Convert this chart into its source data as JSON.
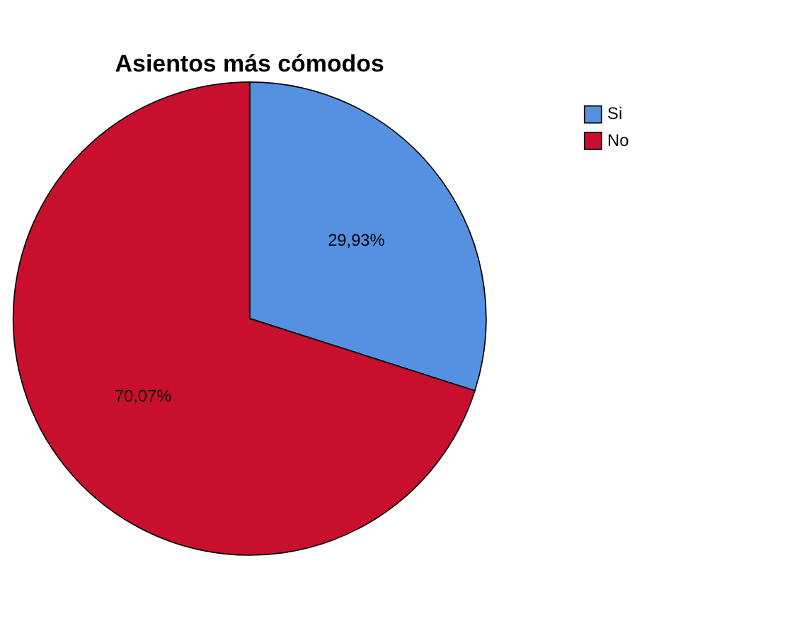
{
  "chart_data": {
    "type": "pie",
    "title": "Asientos más cómodos",
    "categories": [
      "Si",
      "No"
    ],
    "values": [
      29.93,
      70.07
    ],
    "colors": [
      "#5591e0",
      "#c8102e"
    ],
    "value_labels": [
      "29,93%",
      "70,07%"
    ],
    "legend": "top right"
  }
}
